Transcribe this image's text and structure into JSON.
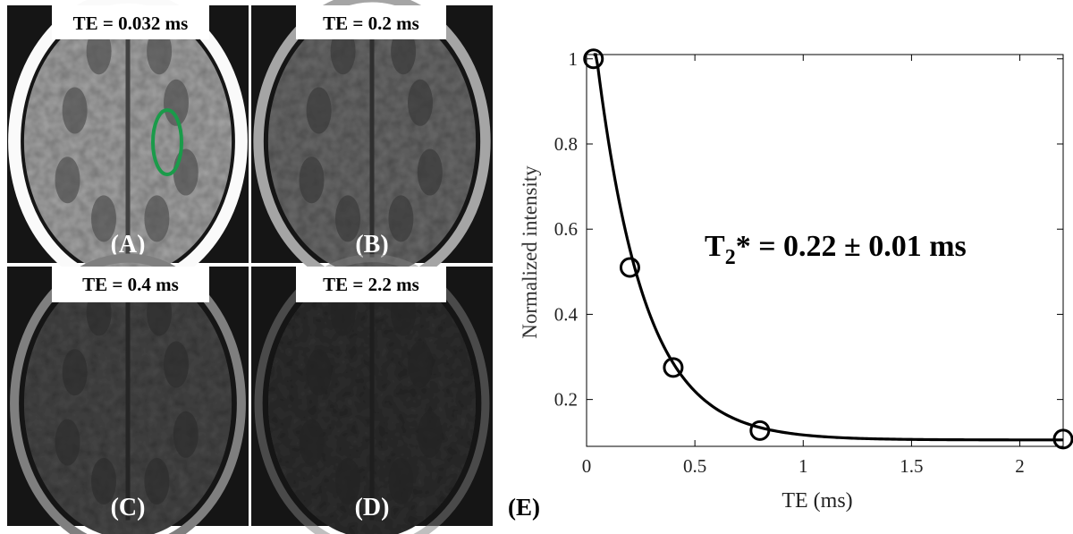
{
  "panels": [
    {
      "id": "A",
      "te_label": "TE = 0.032 ms",
      "letter": "(A)",
      "brightness": 1.0,
      "roi": true
    },
    {
      "id": "B",
      "te_label": "TE = 0.2 ms",
      "letter": "(B)",
      "brightness": 0.55,
      "roi": false
    },
    {
      "id": "C",
      "te_label": "TE = 0.4 ms",
      "letter": "(C)",
      "brightness": 0.3,
      "roi": false
    },
    {
      "id": "D",
      "te_label": "TE = 2.2 ms",
      "letter": "(D)",
      "brightness": 0.12,
      "roi": false
    }
  ],
  "colors": {
    "roi": "#1a9b4a",
    "curve": "#000000",
    "skull": "#f2f2f2",
    "tissue": "#8a8a8a"
  },
  "chart_data": {
    "type": "scatter",
    "panel_letter": "(E)",
    "xlabel": "TE (ms)",
    "ylabel": "Normalized intensity",
    "xlim": [
      0,
      2.2
    ],
    "ylim": [
      0.09,
      1.01
    ],
    "xticks": [
      0,
      0.5,
      1,
      1.5,
      2
    ],
    "xtick_labels": [
      "0",
      "0.5",
      "1",
      "1.5",
      "2"
    ],
    "yticks": [
      0.2,
      0.4,
      0.6,
      0.8,
      1
    ],
    "ytick_labels": [
      "0.2",
      "0.4",
      "0.6",
      "0.8",
      "1"
    ],
    "grid": false,
    "series": [
      {
        "kind": "markers",
        "marker": "open-circle",
        "x": [
          0.032,
          0.2,
          0.4,
          0.8,
          2.2
        ],
        "y": [
          1.0,
          0.51,
          0.275,
          0.127,
          0.107
        ]
      },
      {
        "kind": "fit-curve",
        "model": "mono-exponential",
        "amplitude": 0.96,
        "t2star_ms": 0.22,
        "offset": 0.105
      }
    ],
    "annotation": {
      "base": "T",
      "sub": "2",
      "rest": "*  =  0.22 ± 0.01 ms"
    }
  }
}
